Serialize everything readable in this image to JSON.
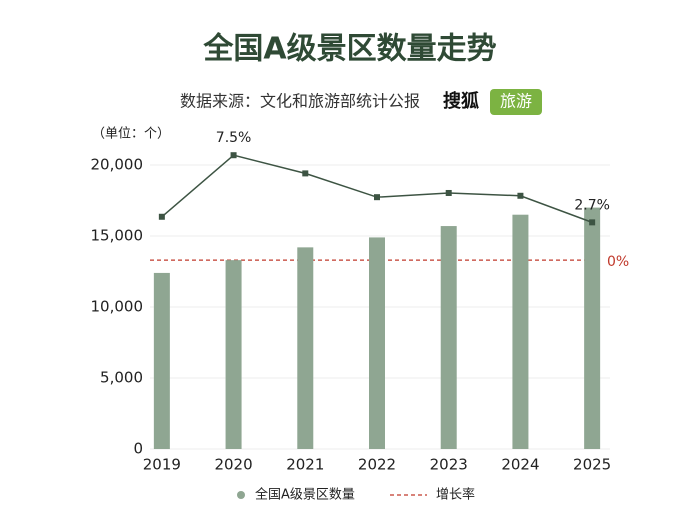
{
  "chart_data": {
    "type": "bar_line",
    "title": "全国A级景区数量走势",
    "subtitle": "数据来源：文化和旅游部统计公报",
    "brand": [
      "搜狐",
      "旅游"
    ],
    "unit_label": "（单位：个）",
    "categories": [
      "2019",
      "2020",
      "2021",
      "2022",
      "2023",
      "2024",
      "2025"
    ],
    "series": [
      {
        "name": "全国A级景区数量",
        "type": "bar",
        "color": "#8fa692",
        "values": [
          12400,
          13300,
          14200,
          14900,
          15700,
          16500,
          17000
        ]
      },
      {
        "name": "增长率",
        "type": "line",
        "axis": "y2",
        "color": "#3d5443",
        "values": [
          3.1,
          7.5,
          6.2,
          4.5,
          4.8,
          4.6,
          2.7
        ],
        "value_labels": [
          null,
          "7.5%",
          null,
          null,
          null,
          null,
          "2.7%"
        ]
      }
    ],
    "reference_line": {
      "value": 0,
      "label": "0%",
      "axis": "y2",
      "color": "#c0392b"
    },
    "ylim": [
      0,
      20000
    ],
    "yticks": [
      0,
      {
        "value": 5000,
        "label": "5,000"
      },
      {
        "value": 10000,
        "label": "10,000"
      },
      {
        "value": 15000,
        "label": "15,000"
      },
      {
        "value": 20000,
        "label": "20,000"
      }
    ],
    "y2lim": [
      -13.5,
      6.8
    ],
    "grid": true
  }
}
